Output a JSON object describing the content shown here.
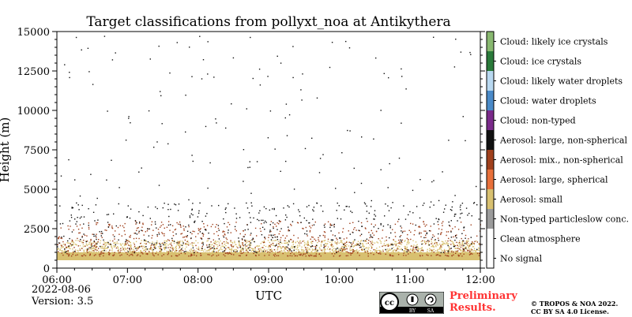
{
  "chart_data": {
    "type": "heatmap",
    "title": "Target classifications from pollyxt_noa at Antikythera",
    "xlabel": "UTC",
    "ylabel": "Height (m)",
    "x_range": [
      "06:00",
      "12:00"
    ],
    "xticks": [
      "06:00",
      "07:00",
      "08:00",
      "09:00",
      "10:00",
      "11:00",
      "12:00"
    ],
    "ylim": [
      0,
      15000
    ],
    "yticks": [
      0,
      2500,
      5000,
      7500,
      10000,
      12500,
      15000
    ],
    "ytick_labels": [
      "0",
      "2500",
      "5000",
      "7500",
      "10000",
      "12500",
      "15000"
    ],
    "grid": false,
    "legend_placement": "right colorbar",
    "classes": [
      {
        "label": "No signal",
        "color": "#ffffff"
      },
      {
        "label": "Clean atmosphere",
        "color": "#ffffff"
      },
      {
        "label": "Non-typed particleslow conc.",
        "color": "#9b9b9b"
      },
      {
        "label": "Aerosol: small",
        "color": "#d8c070"
      },
      {
        "label": "Aerosol: large, spherical",
        "color": "#e8703a"
      },
      {
        "label": "Aerosol: mix., non-spherical",
        "color": "#a0401c"
      },
      {
        "label": "Aerosol: large, non-spherical",
        "color": "#111111"
      },
      {
        "label": "Cloud: non-typed",
        "color": "#7a2a8a"
      },
      {
        "label": "Cloud: water droplets",
        "color": "#4a8ac8"
      },
      {
        "label": "Cloud: likely water droplets",
        "color": "#b8d8f0"
      },
      {
        "label": "Cloud: ice crystals",
        "color": "#2a7a3a"
      },
      {
        "label": "Cloud: likely ice crystals",
        "color": "#88b870"
      }
    ],
    "layers": [
      {
        "class": "Aerosol: small",
        "height_range": [
          500,
          1000
        ],
        "coverage": "dense"
      },
      {
        "class": "Aerosol: small",
        "height_range": [
          1000,
          1800
        ],
        "coverage": "partial"
      },
      {
        "class": "Aerosol: mix., non-spherical",
        "height_range": [
          800,
          3000
        ],
        "coverage": "scattered"
      },
      {
        "class": "Aerosol: large, non-spherical",
        "height_range": [
          1000,
          15000
        ],
        "coverage": "sparse"
      }
    ]
  },
  "footer": {
    "date": "2022-08-06",
    "version": "Version: 3.5",
    "preliminary_line1": "Preliminary",
    "preliminary_line2": "Results.",
    "copyright_line1": "© TROPOS & NOA 2022.",
    "copyright_line2": "CC BY SA 4.0 License.",
    "license_badge": "cc-by-sa-icon",
    "license_badge_text": [
      "BY",
      "SA"
    ]
  }
}
